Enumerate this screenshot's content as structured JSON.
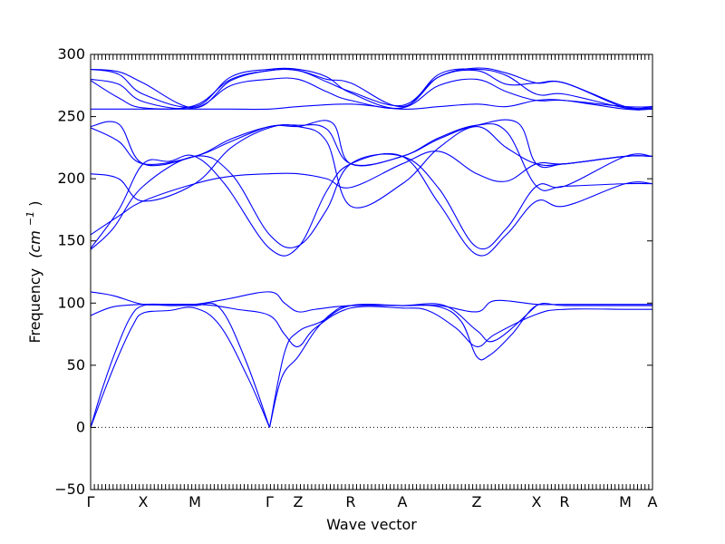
{
  "chart_data": {
    "type": "line",
    "title": "",
    "xlabel": "Wave vector",
    "ylabel": "Frequency (cm⁻¹)",
    "ylabel_text": "Frequency",
    "ylabel_unit": "(cm",
    "ylabel_sup": "−1",
    "ylabel_close": ")",
    "ylim": [
      -50,
      300
    ],
    "xlim": [
      0,
      1
    ],
    "grid": false,
    "zero_line": true,
    "line_color": "#0000ff",
    "yticks": [
      -50,
      0,
      50,
      100,
      150,
      200,
      250,
      300
    ],
    "ytick_labels": [
      "−50",
      "0",
      "50",
      "100",
      "150",
      "200",
      "250",
      "300"
    ],
    "xticks": [
      {
        "label": "Γ",
        "x": 0.0
      },
      {
        "label": "X",
        "x": 0.0935
      },
      {
        "label": "M",
        "x": 0.1855
      },
      {
        "label": "Γ",
        "x": 0.3185
      },
      {
        "label": "Z",
        "x": 0.3694
      },
      {
        "label": "R",
        "x": 0.4629
      },
      {
        "label": "A",
        "x": 0.5548
      },
      {
        "label": "Z",
        "x": 0.6871
      },
      {
        "label": "X",
        "x": 0.7935
      },
      {
        "label": "R",
        "x": 0.8435
      },
      {
        "label": "M",
        "x": 0.9516
      },
      {
        "label": "A",
        "x": 1.0
      }
    ],
    "series": [
      {
        "values": [
          [
            0.0,
            0
          ],
          [
            0.025,
            30
          ],
          [
            0.05,
            58
          ],
          [
            0.075,
            82
          ],
          [
            0.0935,
            92
          ],
          [
            0.14,
            94
          ],
          [
            0.1855,
            96
          ],
          [
            0.23,
            82
          ],
          [
            0.28,
            40
          ],
          [
            0.3185,
            0
          ]
        ]
      },
      {
        "values": [
          [
            0.0,
            0
          ],
          [
            0.02,
            30
          ],
          [
            0.045,
            62
          ],
          [
            0.07,
            88
          ],
          [
            0.0935,
            98
          ],
          [
            0.14,
            98
          ],
          [
            0.1855,
            98
          ],
          [
            0.23,
            96
          ],
          [
            0.275,
            55
          ],
          [
            0.3185,
            0
          ]
        ]
      },
      {
        "values": [
          [
            0.0,
            90
          ],
          [
            0.04,
            97
          ],
          [
            0.0935,
            99
          ],
          [
            0.14,
            99
          ],
          [
            0.1855,
            99
          ],
          [
            0.22,
            98
          ],
          [
            0.26,
            95
          ],
          [
            0.3185,
            90
          ],
          [
            0.345,
            75
          ],
          [
            0.3694,
            65
          ],
          [
            0.4,
            80
          ],
          [
            0.4629,
            96
          ],
          [
            0.5548,
            96
          ],
          [
            0.6,
            94
          ],
          [
            0.65,
            80
          ],
          [
            0.6871,
            65
          ],
          [
            0.72,
            75
          ],
          [
            0.7935,
            91
          ],
          [
            0.8435,
            95
          ],
          [
            0.9516,
            95
          ],
          [
            1.0,
            95
          ]
        ]
      },
      {
        "values": [
          [
            0.0,
            109
          ],
          [
            0.04,
            106
          ],
          [
            0.0935,
            99
          ],
          [
            0.14,
            99
          ],
          [
            0.1855,
            99
          ],
          [
            0.24,
            103
          ],
          [
            0.3185,
            109
          ],
          [
            0.345,
            100
          ],
          [
            0.3694,
            93
          ],
          [
            0.4,
            95
          ],
          [
            0.4629,
            98
          ],
          [
            0.5548,
            98
          ],
          [
            0.62,
            98
          ],
          [
            0.6871,
            93
          ],
          [
            0.72,
            102
          ],
          [
            0.7935,
            99
          ],
          [
            0.8435,
            99
          ],
          [
            0.9516,
            99
          ],
          [
            1.0,
            99
          ]
        ]
      },
      {
        "values": [
          [
            0.3185,
            0
          ],
          [
            0.34,
            40
          ],
          [
            0.3694,
            57
          ],
          [
            0.4,
            78
          ],
          [
            0.43,
            92
          ],
          [
            0.4629,
            98
          ],
          [
            0.5548,
            98
          ],
          [
            0.62,
            97
          ],
          [
            0.66,
            85
          ],
          [
            0.6871,
            57
          ],
          [
            0.71,
            58
          ],
          [
            0.75,
            75
          ],
          [
            0.7935,
            98
          ],
          [
            0.8435,
            98
          ],
          [
            0.9516,
            98
          ],
          [
            1.0,
            98
          ]
        ]
      },
      {
        "values": [
          [
            0.3185,
            0
          ],
          [
            0.345,
            60
          ],
          [
            0.3694,
            77
          ],
          [
            0.41,
            85
          ],
          [
            0.4629,
            98
          ],
          [
            0.5548,
            98
          ],
          [
            0.63,
            98
          ],
          [
            0.6871,
            78
          ],
          [
            0.72,
            70
          ],
          [
            0.7935,
            98
          ]
        ]
      },
      {
        "values": [
          [
            0.0,
            143
          ],
          [
            0.04,
            160
          ],
          [
            0.0935,
            194
          ],
          [
            0.1855,
            218
          ],
          [
            0.25,
            204
          ],
          [
            0.3185,
            155
          ],
          [
            0.3694,
            146
          ],
          [
            0.42,
            175
          ],
          [
            0.4629,
            212
          ],
          [
            0.5548,
            218
          ],
          [
            0.62,
            192
          ],
          [
            0.6871,
            145
          ],
          [
            0.74,
            160
          ],
          [
            0.7935,
            194
          ],
          [
            0.8435,
            194
          ],
          [
            0.9516,
            218
          ],
          [
            1.0,
            218
          ]
        ]
      },
      {
        "values": [
          [
            0.0,
            144
          ],
          [
            0.05,
            175
          ],
          [
            0.0935,
            212
          ],
          [
            0.14,
            214
          ],
          [
            0.1855,
            218
          ],
          [
            0.24,
            195
          ],
          [
            0.3185,
            144
          ],
          [
            0.3694,
            145
          ],
          [
            0.42,
            190
          ],
          [
            0.4629,
            212
          ],
          [
            0.5548,
            218
          ],
          [
            0.62,
            180
          ],
          [
            0.6871,
            139
          ],
          [
            0.74,
            155
          ],
          [
            0.7935,
            182
          ],
          [
            0.8435,
            178
          ],
          [
            0.9516,
            196
          ],
          [
            1.0,
            196
          ]
        ]
      },
      {
        "values": [
          [
            0.0,
            155
          ],
          [
            0.05,
            170
          ],
          [
            0.0935,
            182
          ],
          [
            0.1855,
            196
          ],
          [
            0.25,
            202
          ],
          [
            0.3185,
            204
          ],
          [
            0.3694,
            204
          ],
          [
            0.42,
            200
          ],
          [
            0.4629,
            193
          ],
          [
            0.5548,
            212
          ],
          [
            0.62,
            222
          ],
          [
            0.6871,
            204
          ],
          [
            0.74,
            198
          ],
          [
            0.7935,
            212
          ],
          [
            0.8435,
            212
          ],
          [
            0.9516,
            218
          ],
          [
            1.0,
            218
          ]
        ]
      },
      {
        "values": [
          [
            0.0,
            204
          ],
          [
            0.05,
            200
          ],
          [
            0.0935,
            182
          ],
          [
            0.1855,
            196
          ],
          [
            0.25,
            225
          ],
          [
            0.3185,
            241
          ],
          [
            0.3694,
            242
          ],
          [
            0.42,
            230
          ],
          [
            0.4629,
            178
          ],
          [
            0.5548,
            196
          ],
          [
            0.62,
            225
          ],
          [
            0.6871,
            242
          ],
          [
            0.74,
            225
          ],
          [
            0.7935,
            212
          ],
          [
            0.8435,
            212
          ],
          [
            0.9516,
            218
          ],
          [
            1.0,
            218
          ]
        ]
      },
      {
        "values": [
          [
            0.0,
            241
          ],
          [
            0.05,
            230
          ],
          [
            0.0935,
            212
          ],
          [
            0.1855,
            218
          ],
          [
            0.25,
            232
          ],
          [
            0.3185,
            242
          ],
          [
            0.3694,
            243
          ],
          [
            0.42,
            240
          ],
          [
            0.4629,
            212
          ],
          [
            0.5548,
            218
          ],
          [
            0.62,
            233
          ],
          [
            0.6871,
            243
          ],
          [
            0.74,
            238
          ],
          [
            0.7935,
            194
          ],
          [
            0.8435,
            194
          ],
          [
            0.9516,
            196
          ],
          [
            1.0,
            196
          ]
        ]
      },
      {
        "values": [
          [
            0.0,
            242
          ],
          [
            0.05,
            244
          ],
          [
            0.0935,
            212
          ],
          [
            0.1855,
            218
          ],
          [
            0.25,
            230
          ],
          [
            0.3185,
            242
          ],
          [
            0.3694,
            242
          ],
          [
            0.43,
            245
          ],
          [
            0.4629,
            212
          ],
          [
            0.5548,
            218
          ],
          [
            0.62,
            232
          ],
          [
            0.6871,
            243
          ],
          [
            0.76,
            245
          ],
          [
            0.7935,
            212
          ],
          [
            0.8435,
            212
          ],
          [
            0.9516,
            218
          ],
          [
            1.0,
            218
          ]
        ]
      },
      {
        "values": [
          [
            0.0,
            256
          ],
          [
            0.0935,
            256
          ],
          [
            0.1855,
            256
          ],
          [
            0.25,
            256
          ],
          [
            0.3185,
            256
          ],
          [
            0.3694,
            258
          ],
          [
            0.4629,
            260
          ],
          [
            0.5548,
            256
          ],
          [
            0.62,
            258
          ],
          [
            0.6871,
            260
          ],
          [
            0.74,
            258
          ],
          [
            0.7935,
            263
          ],
          [
            0.8435,
            263
          ],
          [
            0.9516,
            256
          ],
          [
            1.0,
            256
          ]
        ]
      },
      {
        "values": [
          [
            0.0,
            280
          ],
          [
            0.05,
            276
          ],
          [
            0.0935,
            262
          ],
          [
            0.1855,
            257
          ],
          [
            0.25,
            275
          ],
          [
            0.3185,
            280
          ],
          [
            0.3694,
            280
          ],
          [
            0.42,
            270
          ],
          [
            0.4629,
            263
          ],
          [
            0.5548,
            257
          ],
          [
            0.62,
            275
          ],
          [
            0.6871,
            280
          ],
          [
            0.74,
            270
          ],
          [
            0.7935,
            263
          ],
          [
            0.8435,
            263
          ],
          [
            0.9516,
            258
          ],
          [
            1.0,
            258
          ]
        ]
      },
      {
        "values": [
          [
            0.0,
            279
          ],
          [
            0.05,
            265
          ],
          [
            0.0935,
            257
          ],
          [
            0.1855,
            259
          ],
          [
            0.25,
            280
          ],
          [
            0.3185,
            287
          ],
          [
            0.3694,
            287
          ],
          [
            0.42,
            278
          ],
          [
            0.4629,
            270
          ],
          [
            0.5548,
            259
          ],
          [
            0.62,
            282
          ],
          [
            0.6871,
            287
          ],
          [
            0.74,
            276
          ],
          [
            0.7935,
            277
          ],
          [
            0.8435,
            277
          ],
          [
            0.9516,
            258
          ],
          [
            1.0,
            258
          ]
        ]
      },
      {
        "values": [
          [
            0.0,
            288
          ],
          [
            0.05,
            284
          ],
          [
            0.0935,
            268
          ],
          [
            0.1855,
            258
          ],
          [
            0.25,
            282
          ],
          [
            0.3185,
            288
          ],
          [
            0.3694,
            288
          ],
          [
            0.42,
            282
          ],
          [
            0.4629,
            269
          ],
          [
            0.5548,
            257
          ],
          [
            0.62,
            284
          ],
          [
            0.6871,
            288
          ],
          [
            0.74,
            283
          ],
          [
            0.7935,
            268
          ],
          [
            0.8435,
            268
          ],
          [
            0.9516,
            257
          ],
          [
            1.0,
            257
          ]
        ]
      },
      {
        "values": [
          [
            0.0,
            288
          ],
          [
            0.05,
            286
          ],
          [
            0.0935,
            277
          ],
          [
            0.1855,
            257
          ],
          [
            0.25,
            279
          ],
          [
            0.3185,
            287
          ],
          [
            0.3694,
            287
          ],
          [
            0.42,
            280
          ],
          [
            0.4629,
            277
          ],
          [
            0.5548,
            258
          ],
          [
            0.62,
            282
          ],
          [
            0.6871,
            289
          ],
          [
            0.74,
            285
          ],
          [
            0.7935,
            277
          ],
          [
            0.8435,
            277
          ],
          [
            0.9516,
            257
          ],
          [
            1.0,
            257
          ]
        ]
      }
    ]
  }
}
